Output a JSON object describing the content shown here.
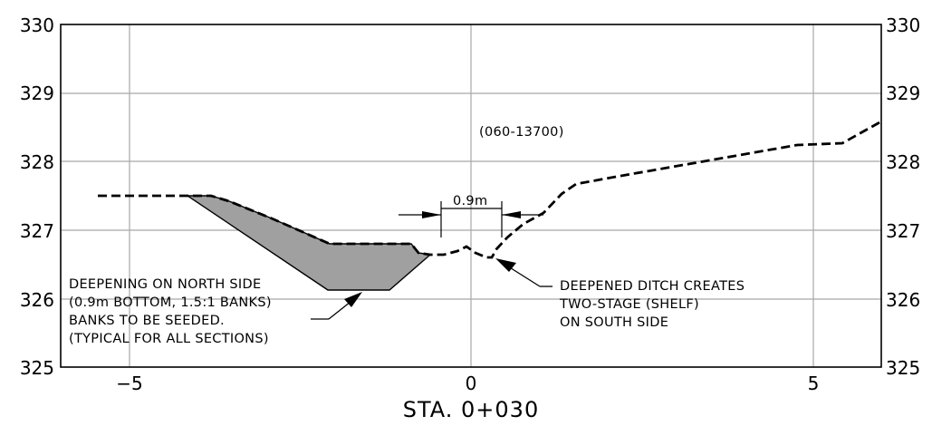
{
  "station_label": "STA. 0+030",
  "section_id": "(060-13700)",
  "dimension_label": "0.9m",
  "y_ticks": [
    {
      "value": 330,
      "label": "330"
    },
    {
      "value": 329,
      "label": "329"
    },
    {
      "value": 328,
      "label": "328"
    },
    {
      "value": 327,
      "label": "327"
    },
    {
      "value": 326,
      "label": "326"
    },
    {
      "value": 325,
      "label": "325"
    }
  ],
  "x_ticks": [
    {
      "value": -5,
      "label": "−5"
    },
    {
      "value": 0,
      "label": "0"
    },
    {
      "value": 5,
      "label": "5"
    }
  ],
  "x_range": [
    -6,
    6
  ],
  "y_range": [
    325,
    330
  ],
  "note_north": [
    "DEEPENING ON NORTH SIDE",
    "(0.9m BOTTOM, 1.5:1 BANKS)",
    "BANKS TO BE SEEDED.",
    "(TYPICAL FOR ALL SECTIONS)"
  ],
  "note_south": [
    "DEEPENED DITCH CREATES",
    "TWO-STAGE (SHELF)",
    "ON SOUTH SIDE"
  ],
  "colors": {
    "line": "#000000",
    "grid": "#a8a8a8",
    "fill": "#a0a0a0"
  }
}
